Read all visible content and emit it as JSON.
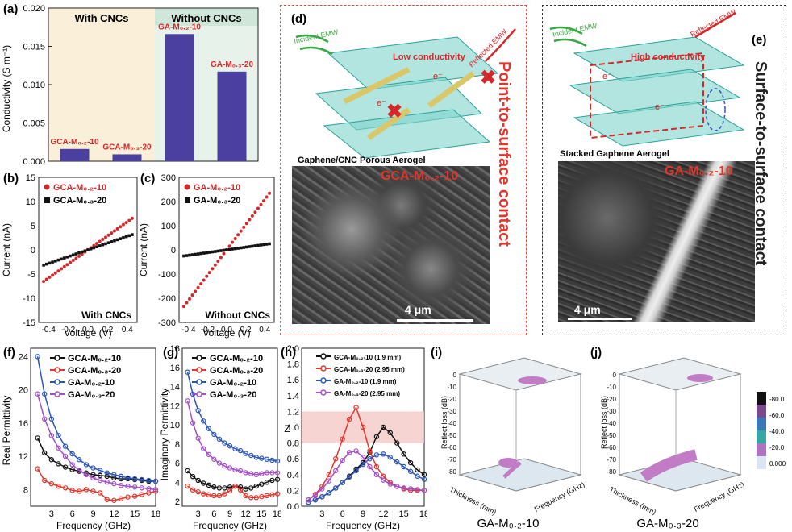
{
  "panels": {
    "a": {
      "letter": "(a)",
      "ylabel": "Conductivity (S m⁻¹)",
      "region_left": "With CNCs",
      "region_right": "Without CNCs",
      "bar_labels": [
        "GCA-M₀.₂-10",
        "GCA-M₀.₃-20",
        "GA-M₀.₂-10",
        "GA-M₀.₃-20"
      ],
      "yticks": [
        "0.000",
        "0.005",
        "0.010",
        "0.015",
        "0.020"
      ]
    },
    "b": {
      "letter": "(b)",
      "legend": [
        "GCA-M₀.₂-10",
        "GCA-M₀.₃-20"
      ],
      "ylabel": "Current (nA)",
      "xlabel": "Voltage (V)",
      "caption": "With CNCs",
      "yticks": [
        "-15",
        "-10",
        "-5",
        "0",
        "5",
        "10",
        "15"
      ],
      "xticks": [
        "-0.4",
        "-0.2",
        "0.0",
        "0.2",
        "0.4"
      ]
    },
    "c": {
      "letter": "(c)",
      "legend": [
        "GA-M₀.₂-10",
        "GA-M₀.₃-20"
      ],
      "ylabel": "Current (nA)",
      "xlabel": "Voltage (V)",
      "caption": "Without CNCs",
      "yticks": [
        "-300",
        "-200",
        "-100",
        "0",
        "100",
        "200",
        "300"
      ],
      "xticks": [
        "-0.4",
        "-0.2",
        "0.0",
        "0.2",
        "0.4"
      ]
    },
    "d": {
      "letter": "(d)",
      "incident": "Incident EMW",
      "reflected": "Reflected EMW",
      "conductivity": "Low conductivity",
      "electron": "e⁻",
      "model_caption": "Gaphene/CNC Porous Aerogel",
      "sem_label": "GCA-M₀.₂-10",
      "scalebar": "4 μm",
      "side_text": "Point-to-surface contact"
    },
    "e": {
      "letter": "(e)",
      "incident": "Incident EMW",
      "reflected": "Reflected EMW",
      "conductivity": "High conductivity",
      "electron": "e⁻",
      "model_caption": "Stacked Gaphene Aerogel",
      "sem_label": "GA-M₀.₂-10",
      "scalebar": "4 μm",
      "side_text": "Surface-to-surface contact"
    },
    "f": {
      "letter": "(f)",
      "ylabel": "Real Permittivity",
      "xlabel": "Frequency (GHz)",
      "legend": [
        "GCA-M₀.₂-10",
        "GCA-M₀.₃-20",
        "GA-M₀.₂-10",
        "GA-M₀.₃-20"
      ],
      "yticks": [
        "8",
        "12",
        "16",
        "20",
        "24"
      ],
      "xticks": [
        "3",
        "6",
        "9",
        "12",
        "15",
        "18"
      ]
    },
    "g": {
      "letter": "(g)",
      "ylabel": "Imaginary Permittivity",
      "xlabel": "Frequency (GHz)",
      "legend": [
        "GCA-M₀.₂-10",
        "GCA-M₀.₃-20",
        "GA-M₀.₂-10",
        "GA-M₀.₃-20"
      ],
      "yticks": [
        "2",
        "4",
        "6",
        "8",
        "10",
        "12",
        "14",
        "16",
        "18"
      ],
      "xticks": [
        "3",
        "6",
        "9",
        "12",
        "15",
        "18"
      ]
    },
    "h": {
      "letter": "(h)",
      "ylabel": "Z",
      "xlabel": "Frequency (GHz)",
      "legend": [
        "GCA-M₀.₂-10 (1.9 mm)",
        "GCA-M₀.₃-20 (2.95 mm)",
        "GA-M₀.₂-10 (1.9 mm)",
        "GA-M₀.₃-20 (2.95 mm)"
      ],
      "yticks": [
        "0.0",
        "0.2",
        "0.4",
        "0.6",
        "0.8",
        "1.0",
        "1.2",
        "1.4",
        "1.6",
        "1.8",
        "2.0"
      ],
      "xticks": [
        "3",
        "6",
        "9",
        "12",
        "15",
        "18"
      ]
    },
    "i": {
      "letter": "(i)",
      "zlabel": "Reflect loss (dB)",
      "xlabel": "Frequency (GHz)",
      "ylabel": "Thickness (mm)",
      "caption": "GA-M₀.₂-10",
      "zticks": [
        "0",
        "-10",
        "-20",
        "-30",
        "-40",
        "-50",
        "-60",
        "-70",
        "-80"
      ]
    },
    "j": {
      "letter": "(j)",
      "zlabel": "Reflect loss (dB)",
      "xlabel": "Frequency (GHz)",
      "ylabel": "Thickness (mm)",
      "caption": "GA-M₀.₃-20",
      "zticks": [
        "0",
        "-10",
        "-20",
        "-30",
        "-40",
        "-50",
        "-60",
        "-70",
        "-80"
      ],
      "colorbar_ticks": [
        "-80.0",
        "-60.0",
        "-40.0",
        "-20.0",
        "0.000"
      ]
    }
  },
  "chart_data": [
    {
      "type": "bar",
      "categories": [
        "GCA-M₀.₂-10",
        "GCA-M₀.₃-20",
        "GA-M₀.₂-10",
        "GA-M₀.₃-20"
      ],
      "values": [
        0.0016,
        0.0009,
        0.0166,
        0.0117
      ],
      "ylabel": "Conductivity (S m⁻¹)",
      "ylim": [
        0,
        0.02
      ],
      "color": "#4b3fa0"
    },
    {
      "type": "scatter",
      "xlabel": "Voltage (V)",
      "ylabel": "Current (nA)",
      "xlim": [
        -0.5,
        0.5
      ],
      "ylim": [
        -15,
        15
      ],
      "series": [
        {
          "name": "GCA-M₀.₂-10",
          "slope": 14.5,
          "color": "#d62728"
        },
        {
          "name": "GCA-M₀.₃-20",
          "slope": 7.0,
          "color": "#111111"
        }
      ]
    },
    {
      "type": "scatter",
      "xlabel": "Voltage (V)",
      "ylabel": "Current (nA)",
      "xlim": [
        -0.5,
        0.5
      ],
      "ylim": [
        -300,
        300
      ],
      "series": [
        {
          "name": "GA-M₀.₂-10",
          "slope": 520,
          "color": "#d62728"
        },
        {
          "name": "GA-M₀.₃-20",
          "slope": 56,
          "color": "#111111"
        }
      ]
    },
    {
      "type": "line",
      "xlabel": "Frequency (GHz)",
      "ylabel": "Real Permittivity",
      "xlim": [
        0,
        18
      ],
      "ylim": [
        6,
        25
      ],
      "x": [
        1,
        2,
        3,
        4,
        5,
        6,
        7,
        8,
        9,
        10,
        11,
        12,
        13,
        14,
        15,
        16,
        17,
        18
      ],
      "series": [
        {
          "name": "GCA-M₀.₂-10",
          "color": "#111111",
          "values": [
            14.2,
            12.4,
            11.6,
            11.1,
            10.7,
            10.4,
            10.2,
            10.0,
            9.8,
            9.7,
            9.6,
            9.4,
            9.3,
            9.3,
            9.2,
            9.1,
            9.0,
            9.0
          ]
        },
        {
          "name": "GCA-M₀.₃-20",
          "color": "#e0362c",
          "values": [
            10.5,
            9.1,
            8.7,
            8.4,
            8.2,
            7.9,
            7.8,
            8.0,
            7.8,
            7.6,
            6.8,
            6.7,
            6.9,
            7.1,
            7.2,
            7.4,
            7.6,
            7.8
          ]
        },
        {
          "name": "GA-M₀.₂-10",
          "color": "#2b56b8",
          "values": [
            24.0,
            19.5,
            16.5,
            14.5,
            13.2,
            12.3,
            11.6,
            11.0,
            10.6,
            10.3,
            10.0,
            9.8,
            9.6,
            9.4,
            9.3,
            9.2,
            9.1,
            9.0
          ]
        },
        {
          "name": "GA-M₀.₃-20",
          "color": "#a24fc6",
          "values": [
            19.5,
            16.5,
            14.5,
            13.0,
            12.0,
            11.0,
            10.3,
            9.8,
            9.4,
            9.1,
            8.9,
            8.7,
            8.5,
            8.4,
            8.3,
            8.2,
            8.1,
            8.0
          ]
        }
      ]
    },
    {
      "type": "line",
      "xlabel": "Frequency (GHz)",
      "ylabel": "Imaginary Permittivity",
      "xlim": [
        0,
        18
      ],
      "ylim": [
        1.5,
        18
      ],
      "x": [
        1,
        2,
        3,
        4,
        5,
        6,
        7,
        8,
        9,
        10,
        11,
        12,
        13,
        14,
        15,
        16,
        17,
        18
      ],
      "series": [
        {
          "name": "GCA-M₀.₂-10",
          "color": "#111111",
          "values": [
            5.2,
            4.6,
            4.2,
            3.9,
            3.7,
            3.5,
            3.4,
            3.4,
            3.5,
            3.6,
            3.5,
            3.3,
            3.4,
            3.6,
            3.8,
            4.0,
            4.2,
            4.3
          ]
        },
        {
          "name": "GCA-M₀.₃-20",
          "color": "#e0362c",
          "values": [
            3.6,
            3.2,
            3.0,
            2.8,
            2.7,
            2.6,
            2.6,
            2.8,
            3.1,
            3.6,
            3.2,
            2.6,
            2.4,
            2.4,
            2.5,
            2.6,
            2.7,
            2.8
          ]
        },
        {
          "name": "GA-M₀.₂-10",
          "color": "#2b56b8",
          "values": [
            15.5,
            13.2,
            11.5,
            10.4,
            9.6,
            9.0,
            8.5,
            8.1,
            7.8,
            7.5,
            7.3,
            7.0,
            6.8,
            6.6,
            6.5,
            6.4,
            6.3,
            6.2
          ]
        },
        {
          "name": "GA-M₀.₃-20",
          "color": "#a24fc6",
          "values": [
            12.5,
            10.2,
            8.6,
            7.5,
            6.9,
            6.4,
            6.0,
            5.7,
            5.5,
            5.3,
            5.2,
            5.0,
            4.9,
            4.8,
            4.9,
            5.0,
            5.0,
            5.0
          ]
        }
      ]
    },
    {
      "type": "line",
      "xlabel": "Frequency (GHz)",
      "ylabel": "Z",
      "xlim": [
        0,
        18
      ],
      "ylim": [
        0,
        2.0
      ],
      "band": [
        0.8,
        1.2
      ],
      "x": [
        1,
        2,
        3,
        4,
        5,
        6,
        7,
        8,
        9,
        10,
        11,
        12,
        13,
        14,
        15,
        16,
        17,
        18
      ],
      "series": [
        {
          "name": "GCA-M₀.₂-10 (1.9 mm)",
          "color": "#111111",
          "values": [
            0.05,
            0.08,
            0.12,
            0.17,
            0.23,
            0.3,
            0.38,
            0.47,
            0.55,
            0.68,
            0.88,
            1.0,
            0.93,
            0.8,
            0.66,
            0.55,
            0.46,
            0.4
          ]
        },
        {
          "name": "GCA-M₀.₃-20 (2.95 mm)",
          "color": "#e0362c",
          "values": [
            0.08,
            0.15,
            0.25,
            0.4,
            0.6,
            0.85,
            1.1,
            1.25,
            1.0,
            0.7,
            0.5,
            0.38,
            0.3,
            0.25,
            0.22,
            0.2,
            0.2,
            0.2
          ]
        },
        {
          "name": "GA-M₀.₂-10 (1.9 mm)",
          "color": "#2b56b8",
          "values": [
            0.05,
            0.08,
            0.12,
            0.17,
            0.23,
            0.3,
            0.37,
            0.45,
            0.53,
            0.6,
            0.65,
            0.66,
            0.62,
            0.56,
            0.5,
            0.44,
            0.38,
            0.34
          ]
        },
        {
          "name": "GA-M₀.₃-20 (2.95 mm)",
          "color": "#a24fc6",
          "values": [
            0.08,
            0.14,
            0.22,
            0.32,
            0.45,
            0.58,
            0.68,
            0.7,
            0.62,
            0.5,
            0.4,
            0.33,
            0.28,
            0.25,
            0.23,
            0.22,
            0.21,
            0.2
          ]
        }
      ]
    }
  ]
}
